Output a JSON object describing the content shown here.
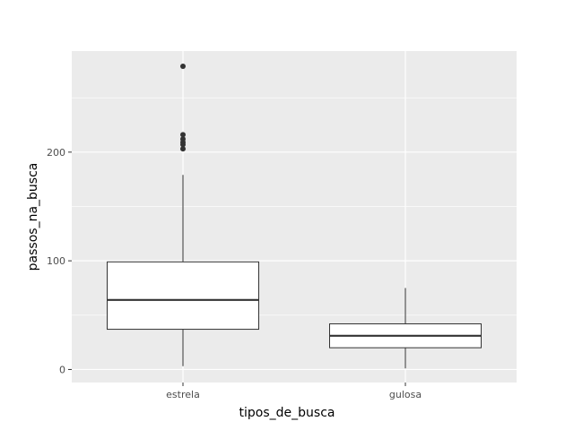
{
  "chart_data": {
    "type": "boxplot",
    "xlabel": "tipos_de_busca",
    "ylabel": "passos_na_busca",
    "ylim": [
      -12,
      293
    ],
    "y_ticks": [
      0,
      100,
      200
    ],
    "grid": true,
    "categories": [
      "estrela",
      "gulosa"
    ],
    "boxes": [
      {
        "category": "estrela",
        "whisker_low": 3,
        "q1": 37,
        "median": 64,
        "q3": 99,
        "whisker_high": 179,
        "outliers": [
          203,
          207,
          209,
          212,
          216,
          279
        ]
      },
      {
        "category": "gulosa",
        "whisker_low": 1,
        "q1": 20,
        "median": 31,
        "q3": 42,
        "whisker_high": 75,
        "outliers": []
      }
    ],
    "colors": {
      "panel_background": "#ebebeb",
      "grid_major": "#ffffff",
      "box_fill": "#ffffff",
      "box_stroke": "#333333"
    }
  }
}
